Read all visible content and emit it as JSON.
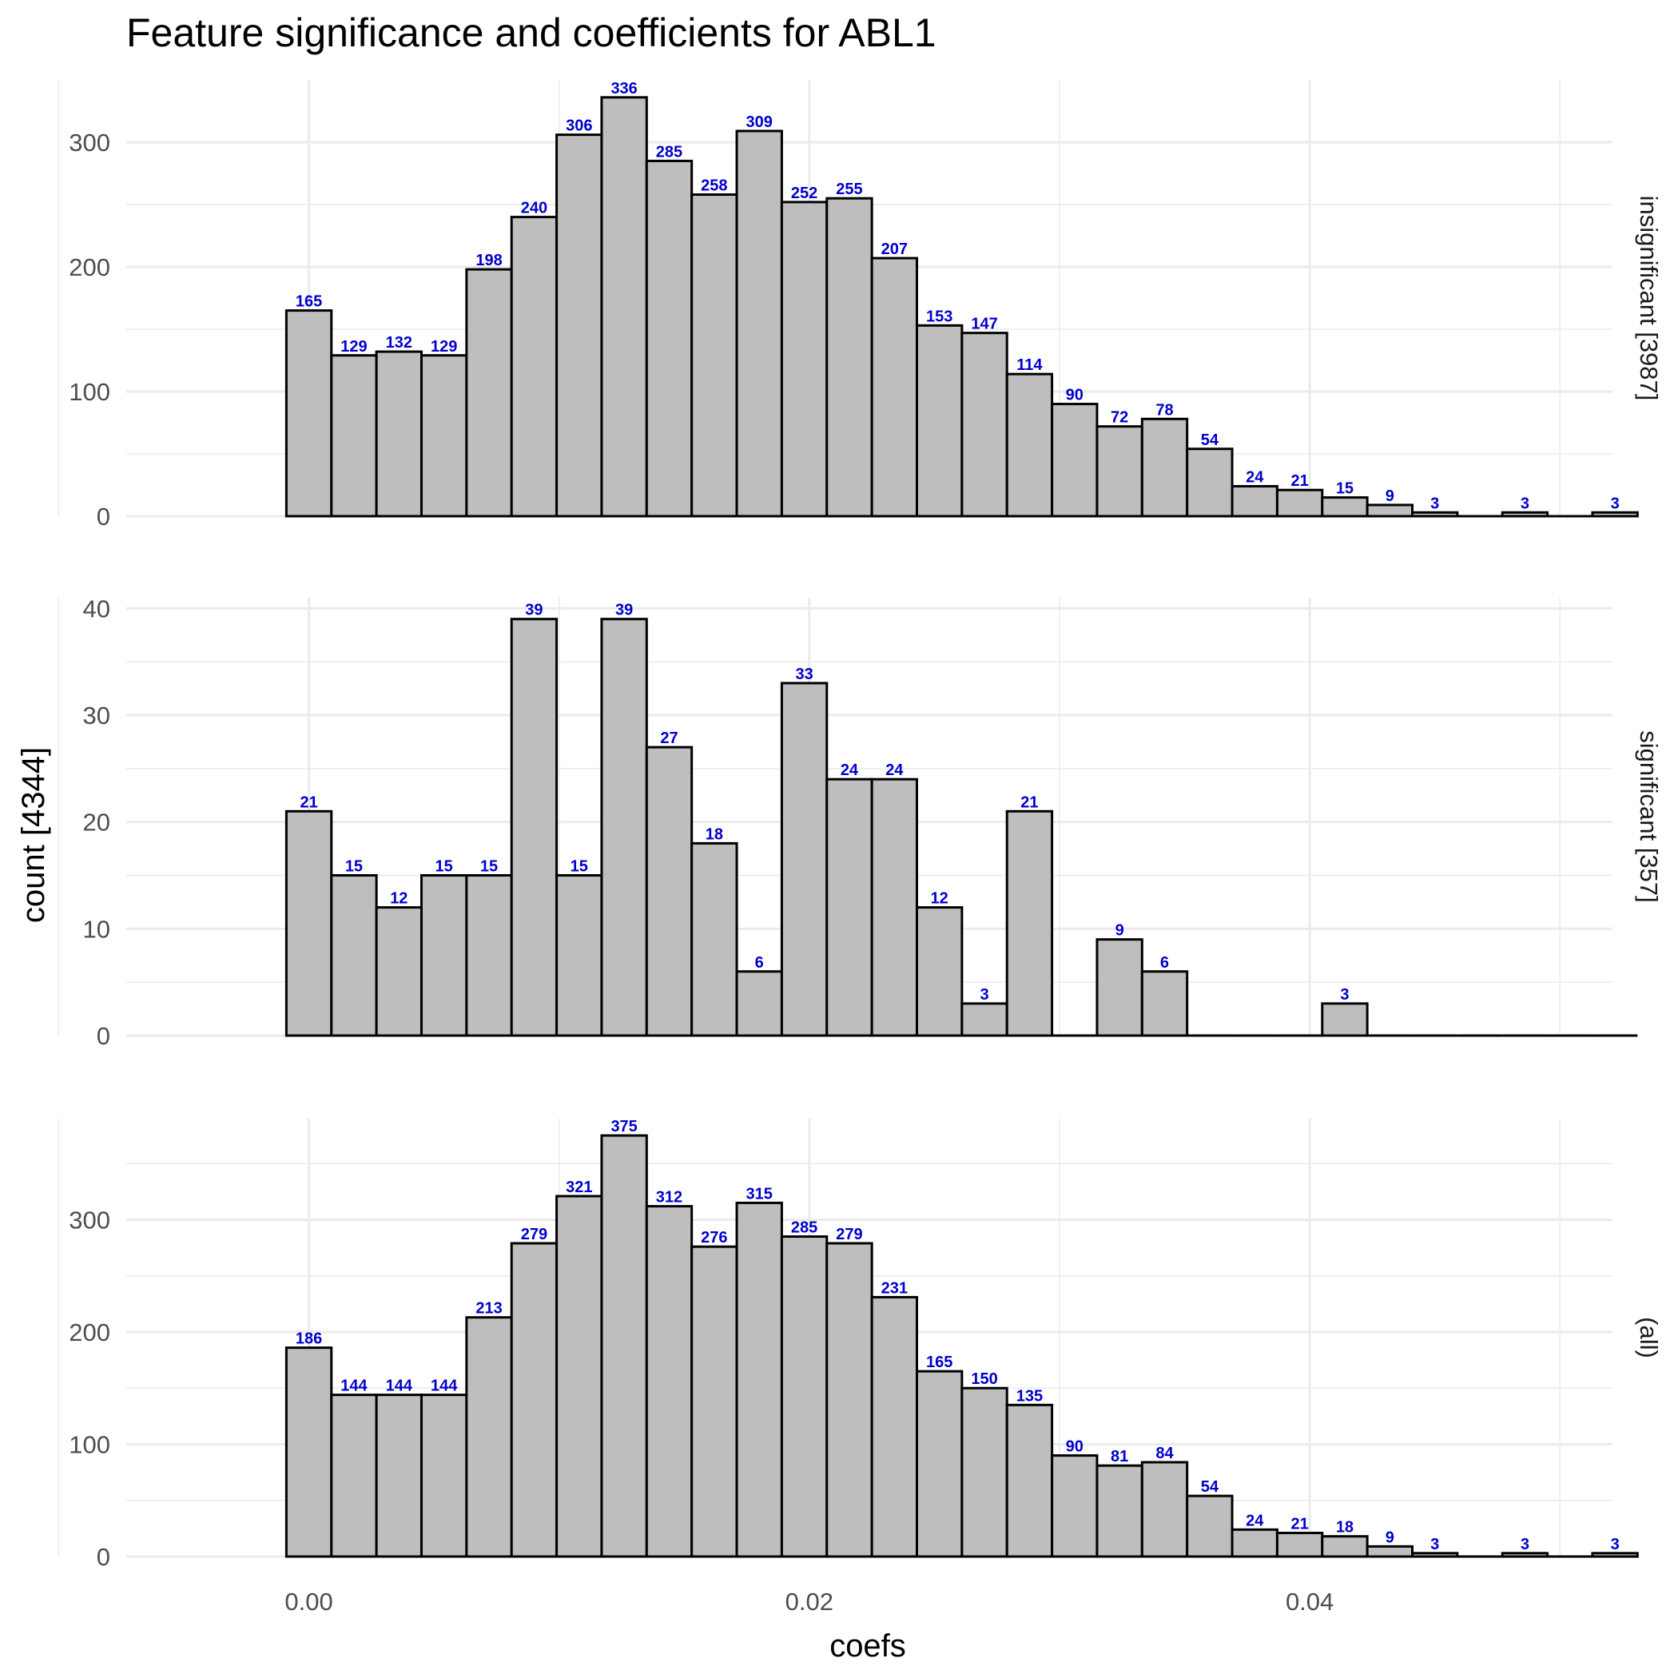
{
  "chart_data": {
    "type": "bar",
    "title": "Feature significance and coefficients for ABL1",
    "xlabel": "coefs",
    "ylabel": "count [4344]",
    "x_ticks": [
      {
        "value": 0.0,
        "label": "0.00"
      },
      {
        "value": 0.02,
        "label": "0.02"
      },
      {
        "value": 0.04,
        "label": "0.04"
      }
    ],
    "xlim": [
      -0.0073,
      0.0521
    ],
    "bin_start": -0.0009,
    "bin_width": 0.0018,
    "grid": true,
    "colors": {
      "bar_fill": "#bebebe",
      "bar_stroke": "#000000",
      "label": "#0000cd",
      "grid": "#ebebeb"
    },
    "panels": [
      {
        "name": "insignificant [3987]",
        "ylim": [
          0,
          350
        ],
        "y_ticks": [
          {
            "value": 0,
            "label": "0"
          },
          {
            "value": 100,
            "label": "100"
          },
          {
            "value": 200,
            "label": "200"
          },
          {
            "value": 300,
            "label": "300"
          }
        ],
        "values": [
          165,
          129,
          132,
          129,
          198,
          240,
          306,
          336,
          285,
          258,
          309,
          252,
          255,
          207,
          153,
          147,
          114,
          90,
          72,
          78,
          54,
          24,
          21,
          15,
          9,
          3,
          0,
          3,
          0,
          3
        ]
      },
      {
        "name": "significant [357]",
        "ylim": [
          0,
          41
        ],
        "y_ticks": [
          {
            "value": 0,
            "label": "0"
          },
          {
            "value": 10,
            "label": "10"
          },
          {
            "value": 20,
            "label": "20"
          },
          {
            "value": 30,
            "label": "30"
          },
          {
            "value": 40,
            "label": "40"
          }
        ],
        "values": [
          21,
          15,
          12,
          15,
          15,
          39,
          15,
          39,
          27,
          18,
          6,
          33,
          24,
          24,
          12,
          3,
          21,
          0,
          9,
          6,
          0,
          0,
          0,
          3,
          0,
          0,
          0,
          0,
          0,
          0
        ]
      },
      {
        "name": "(all)",
        "ylim": [
          0,
          390
        ],
        "y_ticks": [
          {
            "value": 0,
            "label": "0"
          },
          {
            "value": 100,
            "label": "100"
          },
          {
            "value": 200,
            "label": "200"
          },
          {
            "value": 300,
            "label": "300"
          }
        ],
        "values": [
          186,
          144,
          144,
          144,
          213,
          279,
          321,
          375,
          312,
          276,
          315,
          285,
          279,
          231,
          165,
          150,
          135,
          90,
          81,
          84,
          54,
          24,
          21,
          18,
          9,
          3,
          0,
          3,
          0,
          3
        ]
      }
    ]
  }
}
